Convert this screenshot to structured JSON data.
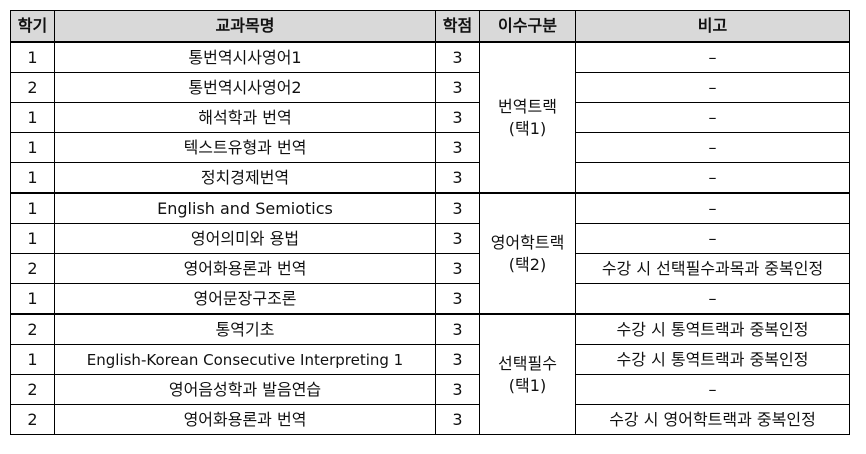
{
  "headers": {
    "term": "학기",
    "course": "교과목명",
    "credit": "학점",
    "category": "이수구분",
    "note": "비고"
  },
  "groups": [
    {
      "category_line1": "번역트랙",
      "category_line2": "(택1)",
      "rows": [
        {
          "term": "1",
          "course": "통번역시사영어1",
          "credit": "3",
          "note": "–"
        },
        {
          "term": "2",
          "course": "통번역시사영어2",
          "credit": "3",
          "note": "–"
        },
        {
          "term": "1",
          "course": "해석학과 번역",
          "credit": "3",
          "note": "–"
        },
        {
          "term": "1",
          "course": "텍스트유형과 번역",
          "credit": "3",
          "note": "–"
        },
        {
          "term": "1",
          "course": "정치경제번역",
          "credit": "3",
          "note": "–"
        }
      ]
    },
    {
      "category_line1": "영어학트랙",
      "category_line2": "(택2)",
      "rows": [
        {
          "term": "1",
          "course": "English and Semiotics",
          "credit": "3",
          "note": "–"
        },
        {
          "term": "1",
          "course": "영어의미와 용법",
          "credit": "3",
          "note": "–"
        },
        {
          "term": "2",
          "course": "영어화용론과 번역",
          "credit": "3",
          "note": "수강 시 선택필수과목과 중복인정"
        },
        {
          "term": "1",
          "course": "영어문장구조론",
          "credit": "3",
          "note": "–"
        }
      ]
    },
    {
      "category_line1": "선택필수",
      "category_line2": "(택1)",
      "rows": [
        {
          "term": "2",
          "course": "통역기초",
          "credit": "3",
          "note": "수강 시 통역트랙과 중복인정"
        },
        {
          "term": "1",
          "course": "English-Korean Consecutive Interpreting 1",
          "credit": "3",
          "note": "수강 시 통역트랙과 중복인정"
        },
        {
          "term": "2",
          "course": "영어음성학과 발음연습",
          "credit": "3",
          "note": "–"
        },
        {
          "term": "2",
          "course": "영어화용론과 번역",
          "credit": "3",
          "note": "수강 시 영어학트랙과 중복인정"
        }
      ]
    }
  ]
}
